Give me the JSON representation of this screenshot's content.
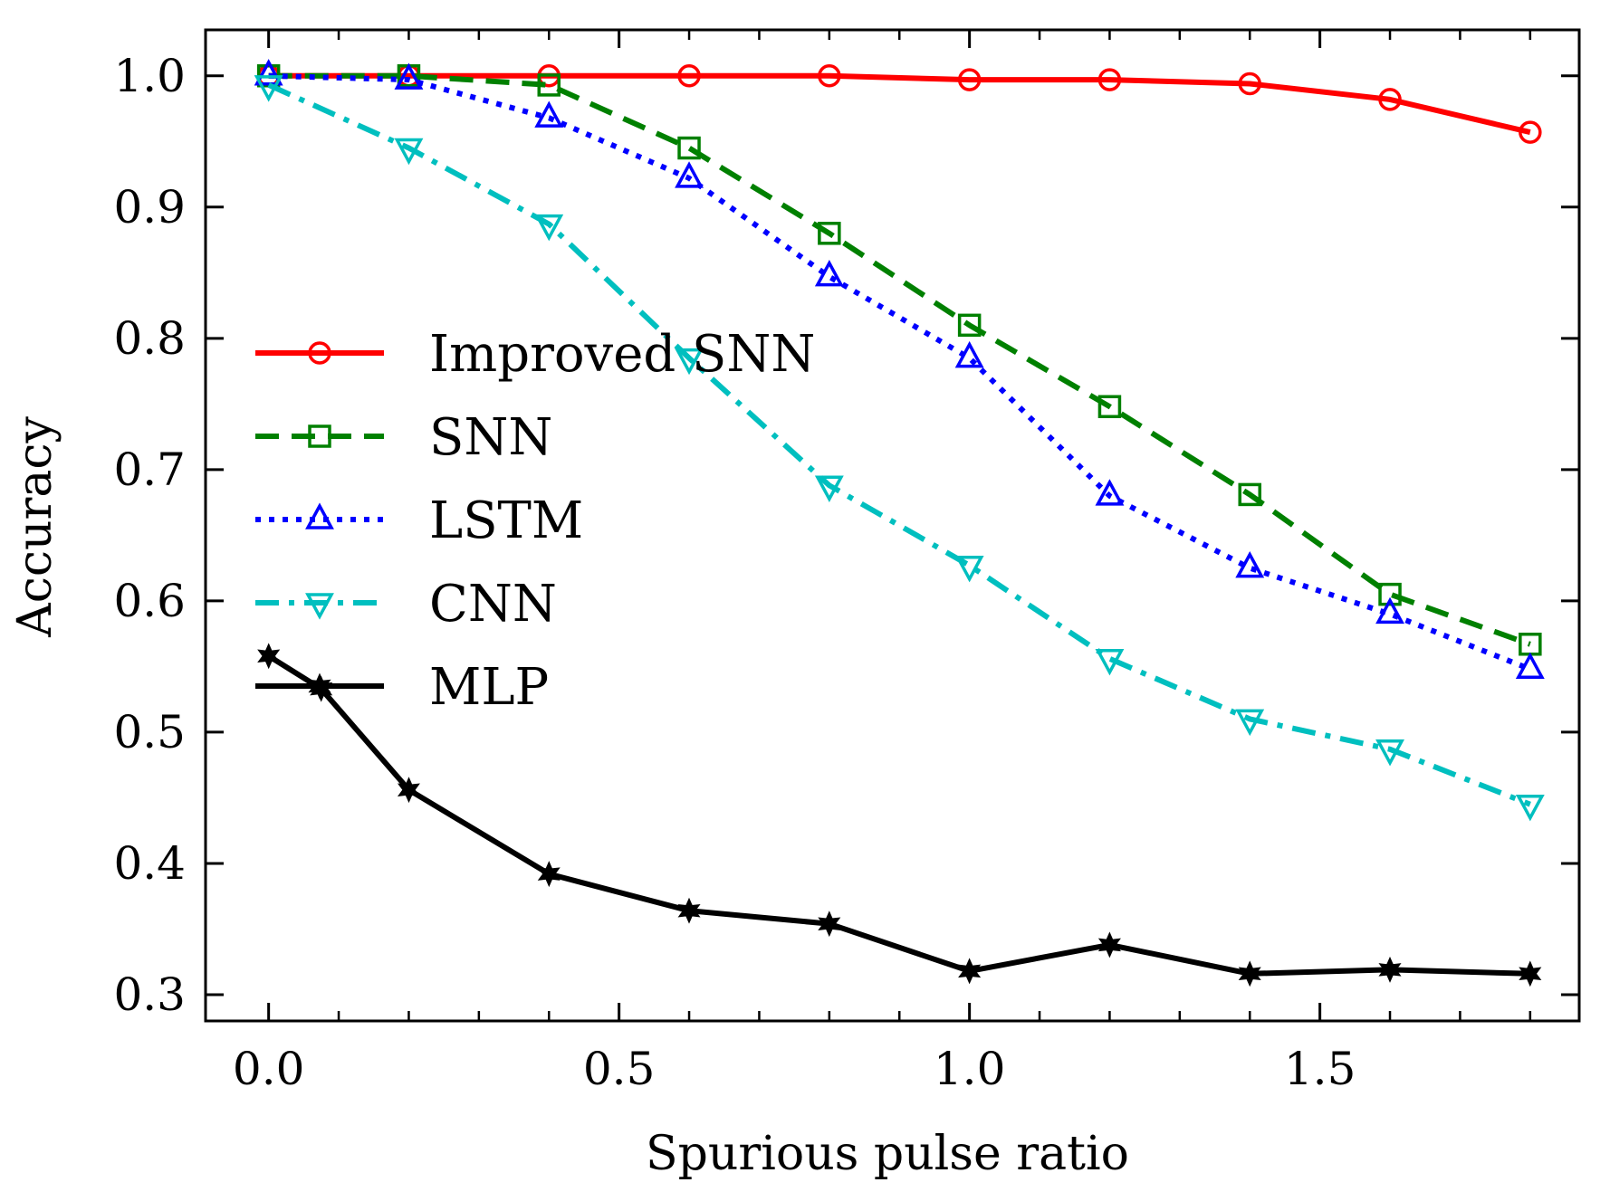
{
  "chart_data": {
    "type": "line",
    "title": "",
    "xlabel": "Spurious pulse ratio",
    "ylabel": "Accuracy",
    "xlim": [
      -0.09,
      1.87
    ],
    "ylim": [
      0.28,
      1.035
    ],
    "xticks": [
      0.0,
      0.5,
      1.0,
      1.5
    ],
    "xtick_labels": [
      "0.0",
      "0.5",
      "1.0",
      "1.5"
    ],
    "yticks": [
      0.3,
      0.4,
      0.5,
      0.6,
      0.7,
      0.8,
      0.9,
      1.0
    ],
    "ytick_labels": [
      "0.3",
      "0.4",
      "0.5",
      "0.6",
      "0.7",
      "0.8",
      "0.9",
      "1.0"
    ],
    "legend_position": "center-left",
    "series": [
      {
        "name": "Improved SNN",
        "color": "#ff0000",
        "marker": "circle",
        "dash": "solid",
        "x": [
          0.0,
          0.2,
          0.4,
          0.6,
          0.8,
          1.0,
          1.2,
          1.4,
          1.6,
          1.8
        ],
        "y": [
          1.0,
          1.0,
          1.0,
          1.0,
          1.0,
          0.997,
          0.997,
          0.994,
          0.982,
          0.957
        ]
      },
      {
        "name": "SNN",
        "color": "#008000",
        "marker": "square",
        "dash": "dashed",
        "x": [
          0.0,
          0.2,
          0.4,
          0.6,
          0.8,
          1.0,
          1.2,
          1.4,
          1.6,
          1.8
        ],
        "y": [
          1.0,
          1.0,
          0.993,
          0.945,
          0.88,
          0.81,
          0.748,
          0.681,
          0.605,
          0.567
        ]
      },
      {
        "name": "LSTM",
        "color": "#0000ff",
        "marker": "triangle-up",
        "dash": "dotted",
        "x": [
          0.0,
          0.2,
          0.4,
          0.6,
          0.8,
          1.0,
          1.2,
          1.4,
          1.6,
          1.8
        ],
        "y": [
          1.0,
          0.997,
          0.968,
          0.922,
          0.847,
          0.785,
          0.68,
          0.625,
          0.59,
          0.548
        ]
      },
      {
        "name": "CNN",
        "color": "#00bfbf",
        "marker": "triangle-down",
        "dash": "dashdot",
        "x": [
          0.0,
          0.2,
          0.4,
          0.6,
          0.8,
          1.0,
          1.2,
          1.4,
          1.6,
          1.8
        ],
        "y": [
          0.993,
          0.945,
          0.887,
          0.785,
          0.688,
          0.627,
          0.556,
          0.51,
          0.487,
          0.445
        ]
      },
      {
        "name": "MLP",
        "color": "#000000",
        "marker": "star",
        "dash": "solid",
        "x": [
          0.0,
          0.075,
          0.2,
          0.4,
          0.6,
          0.8,
          1.0,
          1.2,
          1.4,
          1.6,
          1.8
        ],
        "y": [
          0.558,
          0.533,
          0.456,
          0.392,
          0.364,
          0.354,
          0.318,
          0.338,
          0.316,
          0.319,
          0.316
        ]
      }
    ]
  }
}
